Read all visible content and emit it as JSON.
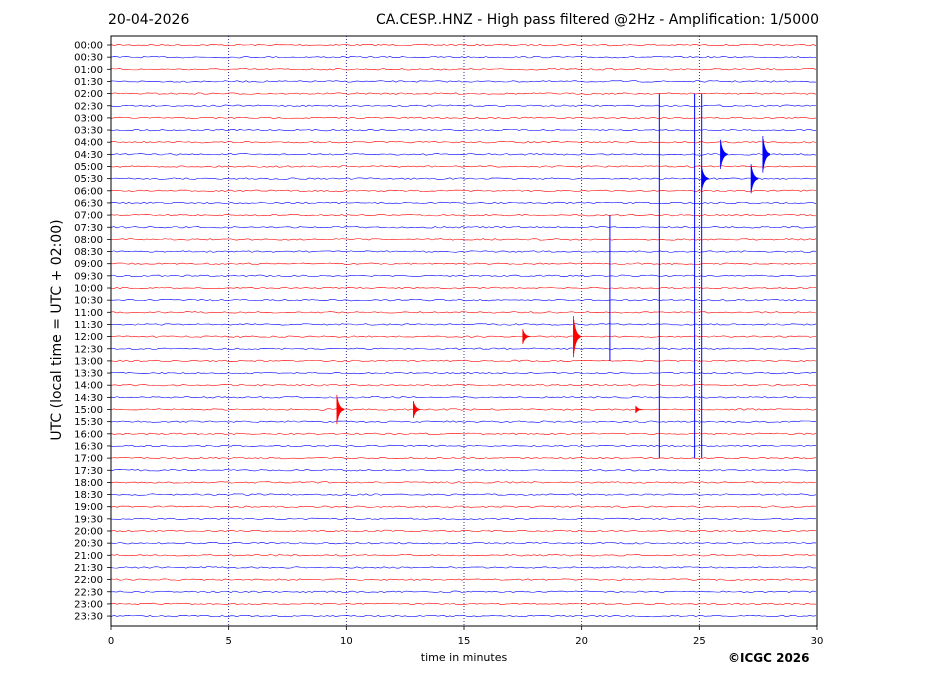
{
  "header": {
    "date": "20-04-2026",
    "title": "CA.CESP..HNZ - High pass filtered @2Hz - Amplification: 1/5000"
  },
  "footer": {
    "copyright": "©ICGC 2026"
  },
  "chart_data": {
    "type": "line",
    "xlabel": "time in minutes",
    "ylabel": "UTC (local time = UTC + 02:00)",
    "xlim": [
      0,
      30
    ],
    "x_ticks": [
      0,
      5,
      10,
      15,
      20,
      25,
      30
    ],
    "vertical_gridlines_at": [
      5,
      10,
      15,
      20,
      25
    ],
    "grid": "vertical dotted",
    "trace_colors": [
      "#ff0000",
      "#0000ff"
    ],
    "row_labels": [
      "00:00",
      "00:30",
      "01:00",
      "01:30",
      "02:00",
      "02:30",
      "03:00",
      "03:30",
      "04:00",
      "04:30",
      "05:00",
      "05:30",
      "06:00",
      "06:30",
      "07:00",
      "07:30",
      "08:00",
      "08:30",
      "09:00",
      "09:30",
      "10:00",
      "10:30",
      "11:00",
      "11:30",
      "12:00",
      "12:30",
      "13:00",
      "13:30",
      "14:00",
      "14:30",
      "15:00",
      "15:30",
      "16:00",
      "16:30",
      "17:00",
      "17:30",
      "18:00",
      "18:30",
      "19:00",
      "19:30",
      "20:00",
      "20:30",
      "21:00",
      "21:30",
      "22:00",
      "22:30",
      "23:00",
      "23:30"
    ],
    "events": [
      {
        "row": "15:00",
        "minute": 9.6,
        "amplitude_rows": 1.2
      },
      {
        "row": "15:00",
        "minute": 12.85,
        "amplitude_rows": 0.7
      },
      {
        "row": "15:00",
        "minute": 22.3,
        "amplitude_rows": 0.3
      },
      {
        "row": "12:00",
        "minute": 17.5,
        "amplitude_rows": 0.6
      },
      {
        "row": "12:00",
        "minute": 19.65,
        "amplitude_rows": 1.7
      },
      {
        "row": "05:30",
        "minute": 25.1,
        "amplitude_rows": 1.0
      },
      {
        "row": "04:30",
        "minute": 25.9,
        "amplitude_rows": 1.2
      },
      {
        "row": "05:30",
        "minute": 27.2,
        "amplitude_rows": 1.2
      },
      {
        "row": "04:30",
        "minute": 27.7,
        "amplitude_rows": 1.5
      }
    ],
    "spikes": [
      {
        "minute": 23.3,
        "from_row": "02:00",
        "to_row": "17:00"
      },
      {
        "minute": 25.1,
        "from_row": "02:00",
        "to_row": "17:00"
      },
      {
        "minute": 24.8,
        "from_row": "02:00",
        "to_row": "17:00"
      },
      {
        "minute": 21.2,
        "from_row": "07:00",
        "to_row": "13:00"
      }
    ]
  }
}
